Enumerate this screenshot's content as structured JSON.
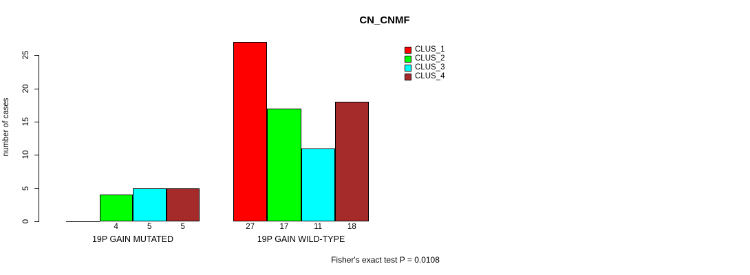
{
  "chart_data": {
    "type": "bar",
    "grouped": true,
    "title": "CN_CNMF",
    "xlabel": "",
    "ylabel": "number of cases",
    "categories": [
      "19P GAIN MUTATED",
      "19P GAIN WILD-TYPE"
    ],
    "series": [
      {
        "name": "CLUS_1",
        "color": "#ff0000",
        "values": [
          0,
          27
        ]
      },
      {
        "name": "CLUS_2",
        "color": "#00ff00",
        "values": [
          4,
          17
        ]
      },
      {
        "name": "CLUS_3",
        "color": "#00ffff",
        "values": [
          5,
          11
        ]
      },
      {
        "name": "CLUS_4",
        "color": "#a52a2a",
        "values": [
          5,
          18
        ]
      }
    ],
    "bar_value_labels_shown": true,
    "zero_value_bars_unlabeled": true,
    "yticks": [
      0,
      5,
      10,
      15,
      20,
      25
    ],
    "ylim": [
      0,
      27
    ],
    "grid": false,
    "legend_position": "top-right",
    "annotation": "Fisher's exact test P = 0.0108",
    "axis_color": "#000000",
    "bar_border_color": "#000000",
    "background_color": "#ffffff"
  }
}
